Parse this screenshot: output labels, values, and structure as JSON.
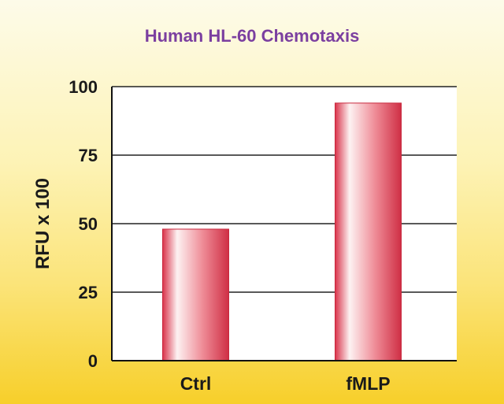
{
  "chart_data": {
    "type": "bar",
    "title": "Human HL-60 Chemotaxis",
    "xlabel": "",
    "ylabel": "RFU x 100",
    "categories": [
      "Ctrl",
      "fMLP"
    ],
    "values": [
      48,
      94
    ],
    "ylim": [
      0,
      100
    ],
    "yticks": [
      0,
      25,
      50,
      75,
      100
    ],
    "grid": true,
    "legend": "none"
  },
  "colors": {
    "title": "#7b3fa0",
    "bar_edge": "#d9334a",
    "bar_mid": "#fdf2f2",
    "bar_dark": "#cf2f45",
    "plot_bg": "#ffffff",
    "grid": "#222222",
    "axis": "#111111"
  }
}
